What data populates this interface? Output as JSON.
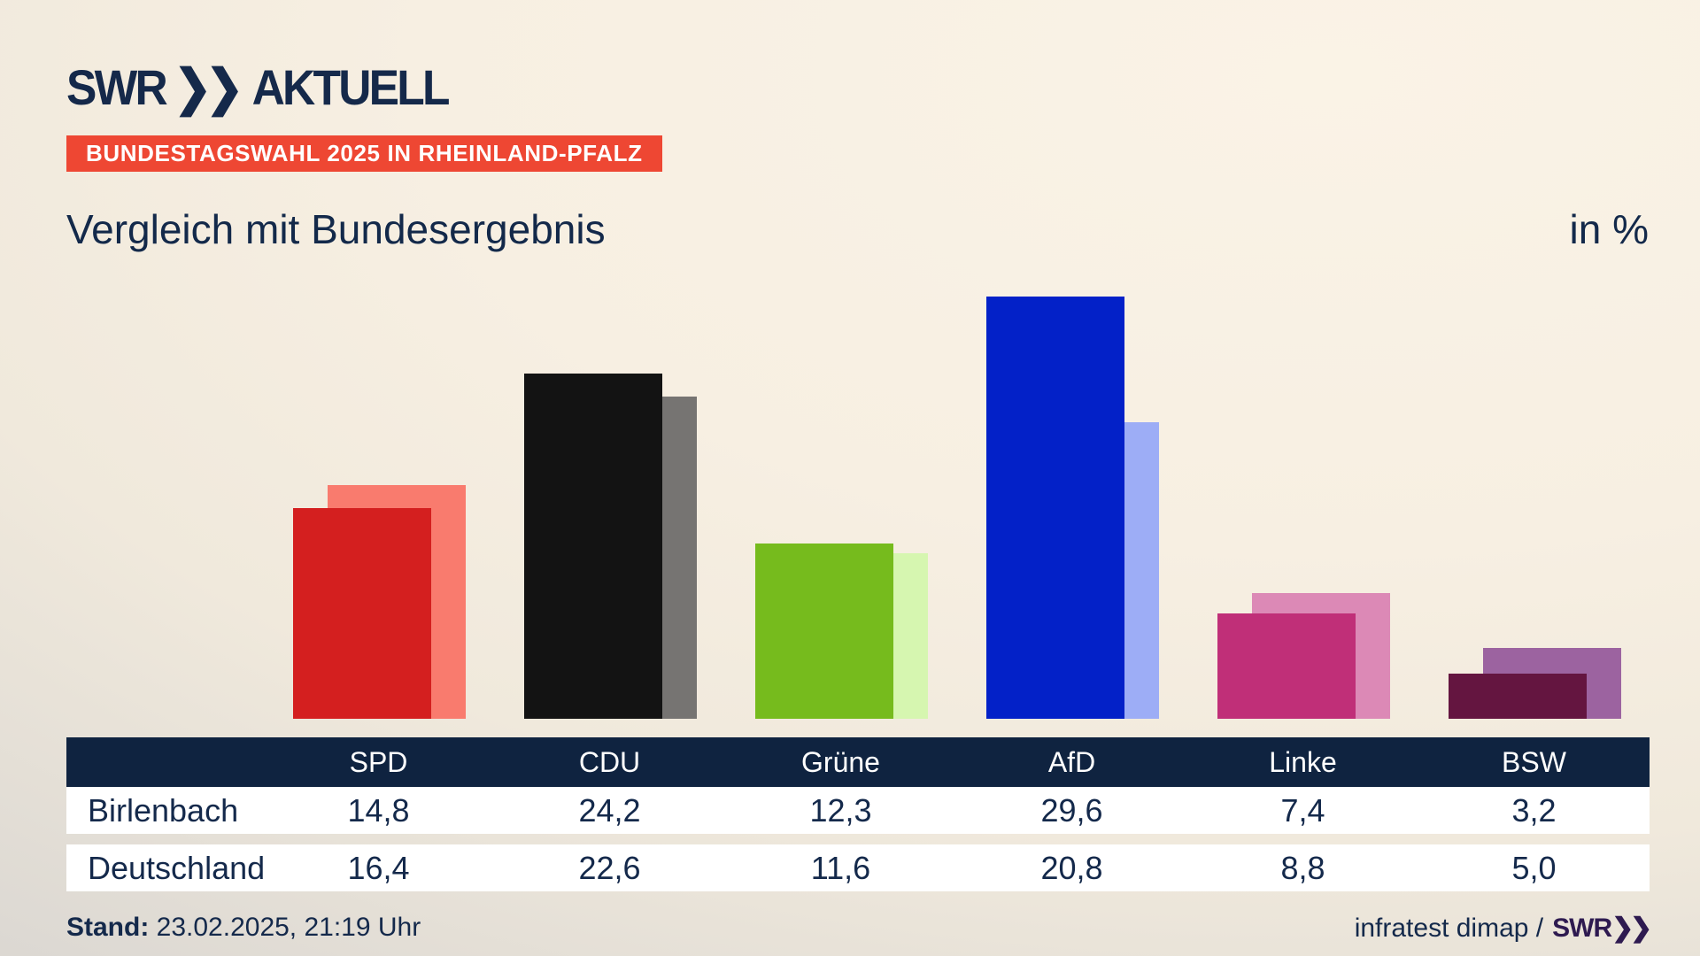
{
  "header": {
    "logo": {
      "brand": "SWR",
      "chevron_icon": "❯❯",
      "product": "AKTUELL"
    },
    "badge": "BUNDESTAGSWAHL 2025 IN RHEINLAND-PFALZ"
  },
  "chart_data": {
    "type": "bar",
    "title": "Vergleich mit Bundesergebnis",
    "unit_label": "in %",
    "categories": [
      "SPD",
      "CDU",
      "Grüne",
      "AfD",
      "Linke",
      "BSW"
    ],
    "series": [
      {
        "name": "Birlenbach",
        "role": "front",
        "values": [
          14.8,
          24.2,
          12.3,
          29.6,
          7.4,
          3.2
        ]
      },
      {
        "name": "Deutschland",
        "role": "back",
        "values": [
          16.4,
          22.6,
          11.6,
          20.8,
          8.8,
          5.0
        ]
      }
    ],
    "party_colors": [
      {
        "party": "SPD",
        "front": "#d41f1f",
        "back": "#f97b6e"
      },
      {
        "party": "CDU",
        "front": "#131313",
        "back": "#767472"
      },
      {
        "party": "Grüne",
        "front": "#76bb1d",
        "back": "#d6f6b0"
      },
      {
        "party": "AfD",
        "front": "#0321c8",
        "back": "#9dadf6"
      },
      {
        "party": "Linke",
        "front": "#c02f78",
        "back": "#dc89b6"
      },
      {
        "party": "BSW",
        "front": "#641540",
        "back": "#9c63a0"
      }
    ],
    "ylim": [
      0,
      32
    ],
    "grid": false,
    "value_format": "de-decimal-1",
    "legend_position": "table-below"
  },
  "footer": {
    "stand_label": "Stand:",
    "stand_value": " 23.02.2025, 21:19 Uhr",
    "source": "infratest dimap /",
    "source_logo": {
      "brand": "SWR",
      "chevron_icon": "❯❯"
    }
  },
  "colors": {
    "background_top": "#f9f1e4",
    "background_bottom_left": "#d5d2ce",
    "navy_text": "#14294b",
    "badge_red": "#ee4733",
    "badge_text": "#ffffff",
    "table_header_bg": "#0f2340",
    "table_row_bg": "#ffffff",
    "swr_footer_purple": "#2e1a50"
  }
}
